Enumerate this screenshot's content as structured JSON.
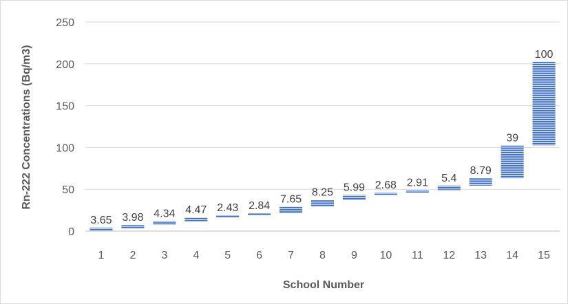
{
  "chart_data": {
    "type": "bar",
    "subtype": "floating-range",
    "title": "",
    "xlabel": "School Number",
    "ylabel": "Rn-222 Concentrations (Bq/m3)",
    "ylim": [
      0,
      250
    ],
    "yticks": [
      0,
      50,
      100,
      150,
      200,
      250
    ],
    "grid": true,
    "legend": "none",
    "categories": [
      "1",
      "2",
      "3",
      "4",
      "5",
      "6",
      "7",
      "8",
      "9",
      "10",
      "11",
      "12",
      "13",
      "14",
      "15"
    ],
    "bar_bottoms": [
      0.5,
      3.3,
      7.6,
      11.8,
      16.3,
      18.6,
      21.4,
      29.1,
      37.3,
      43.3,
      46.0,
      49.0,
      54.4,
      63.2,
      102.4
    ],
    "values": [
      3.65,
      3.98,
      4.34,
      4.47,
      2.43,
      2.84,
      7.65,
      8.25,
      5.99,
      2.68,
      2.91,
      5.4,
      8.79,
      39,
      100
    ],
    "data_labels": [
      "3.65",
      "3.98",
      "4.34",
      "4.47",
      "2.43",
      "2.84",
      "7.65",
      "8.25",
      "5.99",
      "2.68",
      "2.91",
      "5.4",
      "8.79",
      "39",
      "100"
    ],
    "colors": {
      "bar": "#4472c4",
      "stripe": "#ffffff",
      "grid": "#d9d9d9",
      "axis": "#bfbfbf"
    }
  }
}
